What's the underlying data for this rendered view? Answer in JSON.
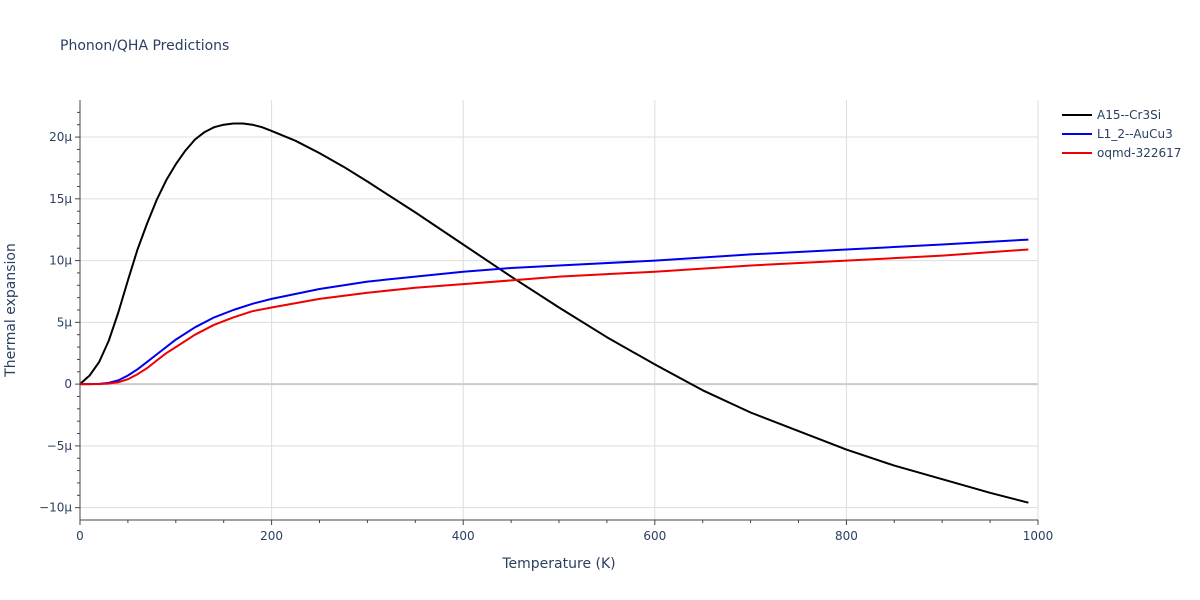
{
  "chart_data": {
    "type": "line",
    "title": "Phonon/QHA Predictions",
    "xlabel": "Temperature (K)",
    "ylabel": "Thermal expansion",
    "xlim": [
      0,
      1000
    ],
    "ylim": [
      -11,
      23
    ],
    "x_ticks": [
      0,
      200,
      400,
      600,
      800,
      1000
    ],
    "x_tick_labels": [
      "0",
      "200",
      "400",
      "600",
      "800",
      "1000"
    ],
    "y_ticks": [
      -10,
      -5,
      0,
      5,
      10,
      15,
      20
    ],
    "y_tick_labels": [
      "−10μ",
      "−5μ",
      "0",
      "5μ",
      "10μ",
      "15μ",
      "20μ"
    ],
    "y_unit_note": "values in units of 1e-6 (μ)",
    "grid": true,
    "legend_position": "top-right",
    "series": [
      {
        "name": "A15--Cr3Si",
        "color": "#000000",
        "x": [
          0,
          10,
          20,
          30,
          40,
          50,
          60,
          70,
          80,
          90,
          100,
          110,
          120,
          130,
          140,
          150,
          160,
          170,
          180,
          190,
          200,
          225,
          250,
          275,
          300,
          350,
          400,
          450,
          500,
          550,
          600,
          650,
          700,
          750,
          800,
          850,
          900,
          950,
          990
        ],
        "y": [
          0,
          0.7,
          1.8,
          3.5,
          5.8,
          8.4,
          10.9,
          13.0,
          14.9,
          16.5,
          17.8,
          18.9,
          19.8,
          20.4,
          20.8,
          21.0,
          21.1,
          21.1,
          21.0,
          20.8,
          20.5,
          19.7,
          18.7,
          17.6,
          16.4,
          13.9,
          11.3,
          8.7,
          6.2,
          3.8,
          1.6,
          -0.5,
          -2.3,
          -3.8,
          -5.3,
          -6.6,
          -7.7,
          -8.8,
          -9.6
        ]
      },
      {
        "name": "L1_2--AuCu3",
        "color": "#0000ee",
        "x": [
          0,
          10,
          20,
          30,
          40,
          50,
          60,
          70,
          80,
          90,
          100,
          120,
          140,
          160,
          180,
          200,
          250,
          300,
          350,
          400,
          450,
          500,
          600,
          700,
          800,
          900,
          990
        ],
        "y": [
          0,
          0,
          0.02,
          0.1,
          0.3,
          0.7,
          1.2,
          1.8,
          2.4,
          3.0,
          3.6,
          4.6,
          5.4,
          6.0,
          6.5,
          6.9,
          7.7,
          8.3,
          8.7,
          9.1,
          9.4,
          9.6,
          10.0,
          10.5,
          10.9,
          11.3,
          11.7
        ]
      },
      {
        "name": "oqmd-322617",
        "color": "#ee0000",
        "x": [
          0,
          10,
          20,
          30,
          40,
          50,
          60,
          70,
          80,
          90,
          100,
          120,
          140,
          160,
          180,
          200,
          250,
          300,
          350,
          400,
          450,
          500,
          600,
          700,
          800,
          900,
          990
        ],
        "y": [
          0,
          0,
          0.01,
          0.05,
          0.15,
          0.4,
          0.8,
          1.3,
          1.9,
          2.5,
          3.0,
          4.0,
          4.8,
          5.4,
          5.9,
          6.2,
          6.9,
          7.4,
          7.8,
          8.1,
          8.4,
          8.7,
          9.1,
          9.6,
          10.0,
          10.4,
          10.9
        ]
      }
    ]
  }
}
